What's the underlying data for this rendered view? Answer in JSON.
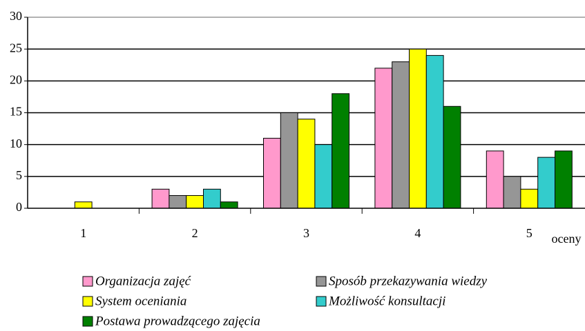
{
  "chart_data": {
    "type": "bar",
    "x_label": "oceny",
    "categories": [
      "1",
      "2",
      "3",
      "4",
      "5"
    ],
    "series": [
      {
        "name": "Organizacja zajęć",
        "color": "#ff99cc",
        "values": [
          0,
          3,
          11,
          22,
          9
        ]
      },
      {
        "name": "Sposób przekazywania wiedzy",
        "color": "#969696",
        "values": [
          0,
          2,
          15,
          23,
          5
        ]
      },
      {
        "name": "System oceniania",
        "color": "#ffff00",
        "values": [
          1,
          2,
          14,
          25,
          3
        ]
      },
      {
        "name": "Możliwość konsultacji",
        "color": "#33cccc",
        "values": [
          0,
          3,
          10,
          24,
          8
        ]
      },
      {
        "name": "Postawa prowadzącego zajęcia",
        "color": "#008000",
        "values": [
          0,
          1,
          18,
          16,
          9
        ]
      }
    ],
    "ylim": [
      0,
      30
    ],
    "yticks": [
      0,
      5,
      10,
      15,
      20,
      25,
      30
    ],
    "grid": true,
    "legend": "bottom"
  }
}
